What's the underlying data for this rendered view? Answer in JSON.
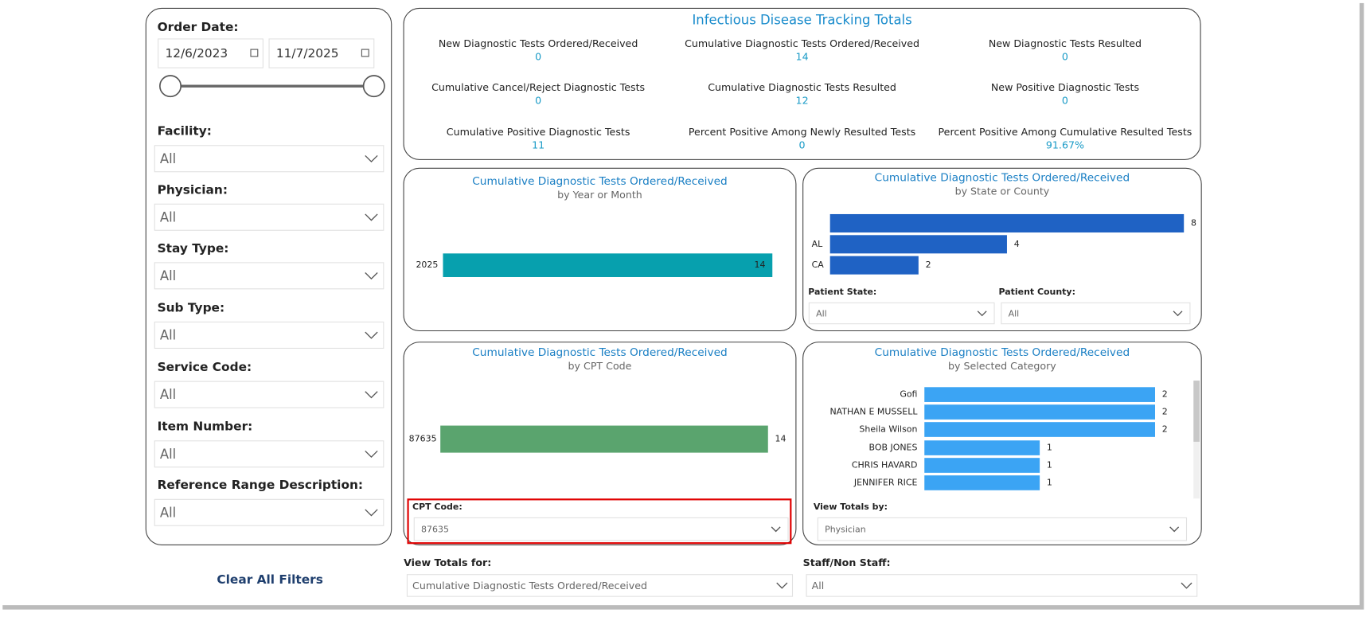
{
  "filters": {
    "order_date": {
      "label": "Order Date:",
      "start": "12/6/2023",
      "end": "11/7/2025"
    },
    "dropdowns": [
      {
        "label": "Facility:",
        "value": "All"
      },
      {
        "label": "Physician:",
        "value": "All"
      },
      {
        "label": "Stay Type:",
        "value": "All"
      },
      {
        "label": "Sub Type:",
        "value": "All"
      },
      {
        "label": "Service Code:",
        "value": "All"
      },
      {
        "label": "Item Number:",
        "value": "All"
      },
      {
        "label": "Reference Range Description:",
        "value": "All"
      }
    ],
    "clear": "Clear All Filters"
  },
  "totals": {
    "title": "Infectious Disease Tracking Totals",
    "items": [
      {
        "label": "New Diagnostic Tests Ordered/Received",
        "value": 0
      },
      {
        "label": "Cumulative Diagnostic Tests Ordered/Received",
        "value": 14
      },
      {
        "label": "New Diagnostic Tests Resulted",
        "value": 0
      },
      {
        "label": "Cumulative Cancel/Reject Diagnostic Tests",
        "value": 0
      },
      {
        "label": "Cumulative Diagnostic Tests Resulted",
        "value": 12
      },
      {
        "label": "New Positive Diagnostic Tests",
        "value": 0
      },
      {
        "label": "Cumulative Positive Diagnostic Tests",
        "value": 11
      },
      {
        "label": "Percent Positive Among Newly Resulted Tests",
        "value": 0
      },
      {
        "label": "Percent Positive Among Cumulative Resulted Tests",
        "value": "91.67%"
      }
    ]
  },
  "charts": [
    {
      "type": "bar",
      "title": "Cumulative Diagnostic Tests Ordered/Received",
      "subtitle": "by Year or Month",
      "categories": [
        "2025"
      ],
      "values": [
        14
      ],
      "color": "#07a0ae",
      "xlim": [
        0,
        14
      ],
      "controls": []
    },
    {
      "type": "bar",
      "title": "Cumulative Diagnostic Tests Ordered/Received",
      "subtitle": "by State or County",
      "categories": [
        null,
        "AL",
        "CA"
      ],
      "values": [
        8,
        4,
        2
      ],
      "color": "#1f62c4",
      "xlim": [
        0,
        8
      ],
      "controls": [
        {
          "label": "Patient State:",
          "value": "All"
        },
        {
          "label": "Patient County:",
          "value": "All"
        }
      ]
    },
    {
      "type": "bar",
      "title": "Cumulative Diagnostic Tests Ordered/Received",
      "subtitle": "by CPT Code",
      "categories": [
        "87635"
      ],
      "values": [
        14
      ],
      "color": "#5aa46e",
      "xlim": [
        0,
        14
      ],
      "controls": [
        {
          "label": "CPT Code:",
          "value": "87635"
        }
      ]
    },
    {
      "type": "bar",
      "title": "Cumulative Diagnostic Tests Ordered/Received",
      "subtitle": "by Selected Category",
      "categories": [
        "Gofi",
        "NATHAN E MUSSELL",
        "Sheila Wilson",
        "BOB JONES",
        "CHRIS HAVARD",
        "JENNIFER RICE"
      ],
      "values": [
        2,
        2,
        2,
        1,
        1,
        1
      ],
      "color": "#3ba4f4",
      "xlim": [
        0,
        2
      ],
      "controls": [
        {
          "label": "View Totals by:",
          "value": "Physician"
        }
      ]
    }
  ],
  "bottom_controls": [
    {
      "label": "View Totals for:",
      "value": "Cumulative Diagnostic Tests Ordered/Received"
    },
    {
      "label": "Staff/Non Staff:",
      "value": "All"
    }
  ]
}
